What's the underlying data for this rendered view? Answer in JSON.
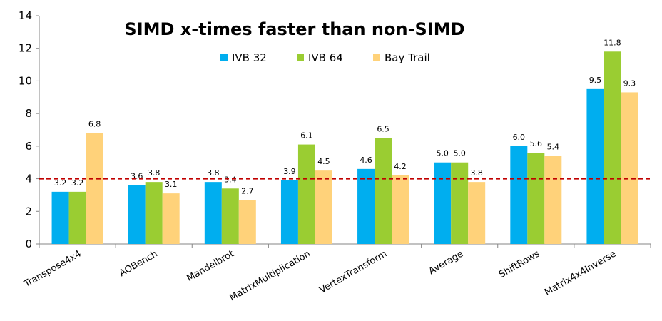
{
  "chart_data": {
    "type": "bar",
    "title": "SIMD x-times faster than non-SIMD",
    "xlabel": "",
    "ylabel": "",
    "ylim": [
      0,
      14
    ],
    "yticks": [
      0,
      2,
      4,
      6,
      8,
      10,
      12,
      14
    ],
    "grid": false,
    "legend_position": "top",
    "categories": [
      "Transpose4x4",
      "AOBench",
      "Mandelbrot",
      "MatrixMultiplication",
      "VertexTransform",
      "Average",
      "ShiftRows",
      "Matrix4x4Inverse"
    ],
    "series": [
      {
        "name": "IVB 32",
        "color": "#00AEEF",
        "values": [
          3.2,
          3.6,
          3.8,
          3.9,
          4.6,
          5.0,
          6.0,
          9.5
        ],
        "labels": [
          "3.2",
          "3.6",
          "3.8",
          "3.9",
          "4.6",
          "5.0",
          "6.0",
          "9.5"
        ]
      },
      {
        "name": "IVB 64",
        "color": "#9ACD32",
        "values": [
          3.2,
          3.8,
          3.4,
          6.1,
          6.5,
          5.0,
          5.6,
          11.8
        ],
        "labels": [
          "3.2",
          "3.8",
          "3.4",
          "6.1",
          "6.5",
          "5.0",
          "5.6",
          "11.8"
        ]
      },
      {
        "name": "Bay Trail",
        "color": "#FFD27A",
        "values": [
          6.8,
          3.1,
          2.7,
          4.5,
          4.2,
          3.8,
          5.4,
          9.3
        ],
        "labels": [
          "6.8",
          "3.1",
          "2.7",
          "4.5",
          "4.2",
          "3.8",
          "5.4",
          "9.3"
        ]
      }
    ],
    "reference_line": {
      "value": 4,
      "color": "#C00000",
      "style": "dashed"
    }
  }
}
